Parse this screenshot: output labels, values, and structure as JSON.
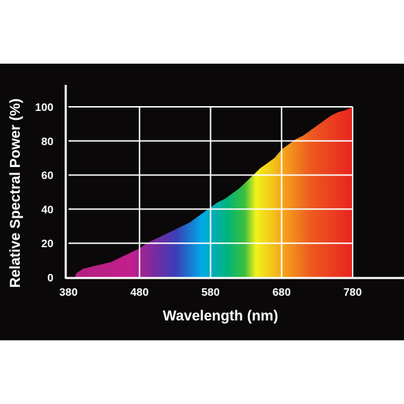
{
  "chart_data": {
    "type": "area",
    "title": "",
    "xlabel": "Wavelength (nm)",
    "ylabel": "Relative Spectral Power (%)",
    "xlim": [
      380,
      780
    ],
    "ylim": [
      0,
      100
    ],
    "x_ticks": [
      "380",
      "480",
      "580",
      "680",
      "780"
    ],
    "y_ticks": [
      "0",
      "20",
      "40",
      "60",
      "80",
      "100"
    ],
    "grid": true,
    "fill": "visible-spectrum gradient",
    "series": [
      {
        "x": [
          390,
          400,
          410,
          420,
          430,
          440,
          450,
          460,
          470,
          480,
          490,
          500,
          510,
          520,
          530,
          540,
          550,
          560,
          570,
          580,
          590,
          600,
          610,
          620,
          630,
          640,
          650,
          660,
          670,
          680,
          690,
          700,
          710,
          720,
          730,
          740,
          750,
          760,
          770,
          780
        ],
        "y": [
          2,
          5,
          6,
          7,
          8,
          9,
          11,
          13,
          15,
          17,
          20,
          22,
          24,
          26,
          28,
          30,
          32,
          35,
          38,
          41,
          44,
          46,
          49,
          52,
          56,
          60,
          64,
          67,
          70,
          75,
          78,
          81,
          83,
          86,
          89,
          92,
          95,
          97,
          98,
          100
        ]
      }
    ],
    "colors": {
      "background": "#0b0809",
      "grid": "#ffffff",
      "spectrum_stops": [
        "#b0207f",
        "#c21f8c",
        "#7a2a9f",
        "#3a3fb8",
        "#00a9e6",
        "#00b47a",
        "#3cbf3c",
        "#f2f21a",
        "#f3a11b",
        "#ee5b21",
        "#e8231f"
      ]
    }
  }
}
